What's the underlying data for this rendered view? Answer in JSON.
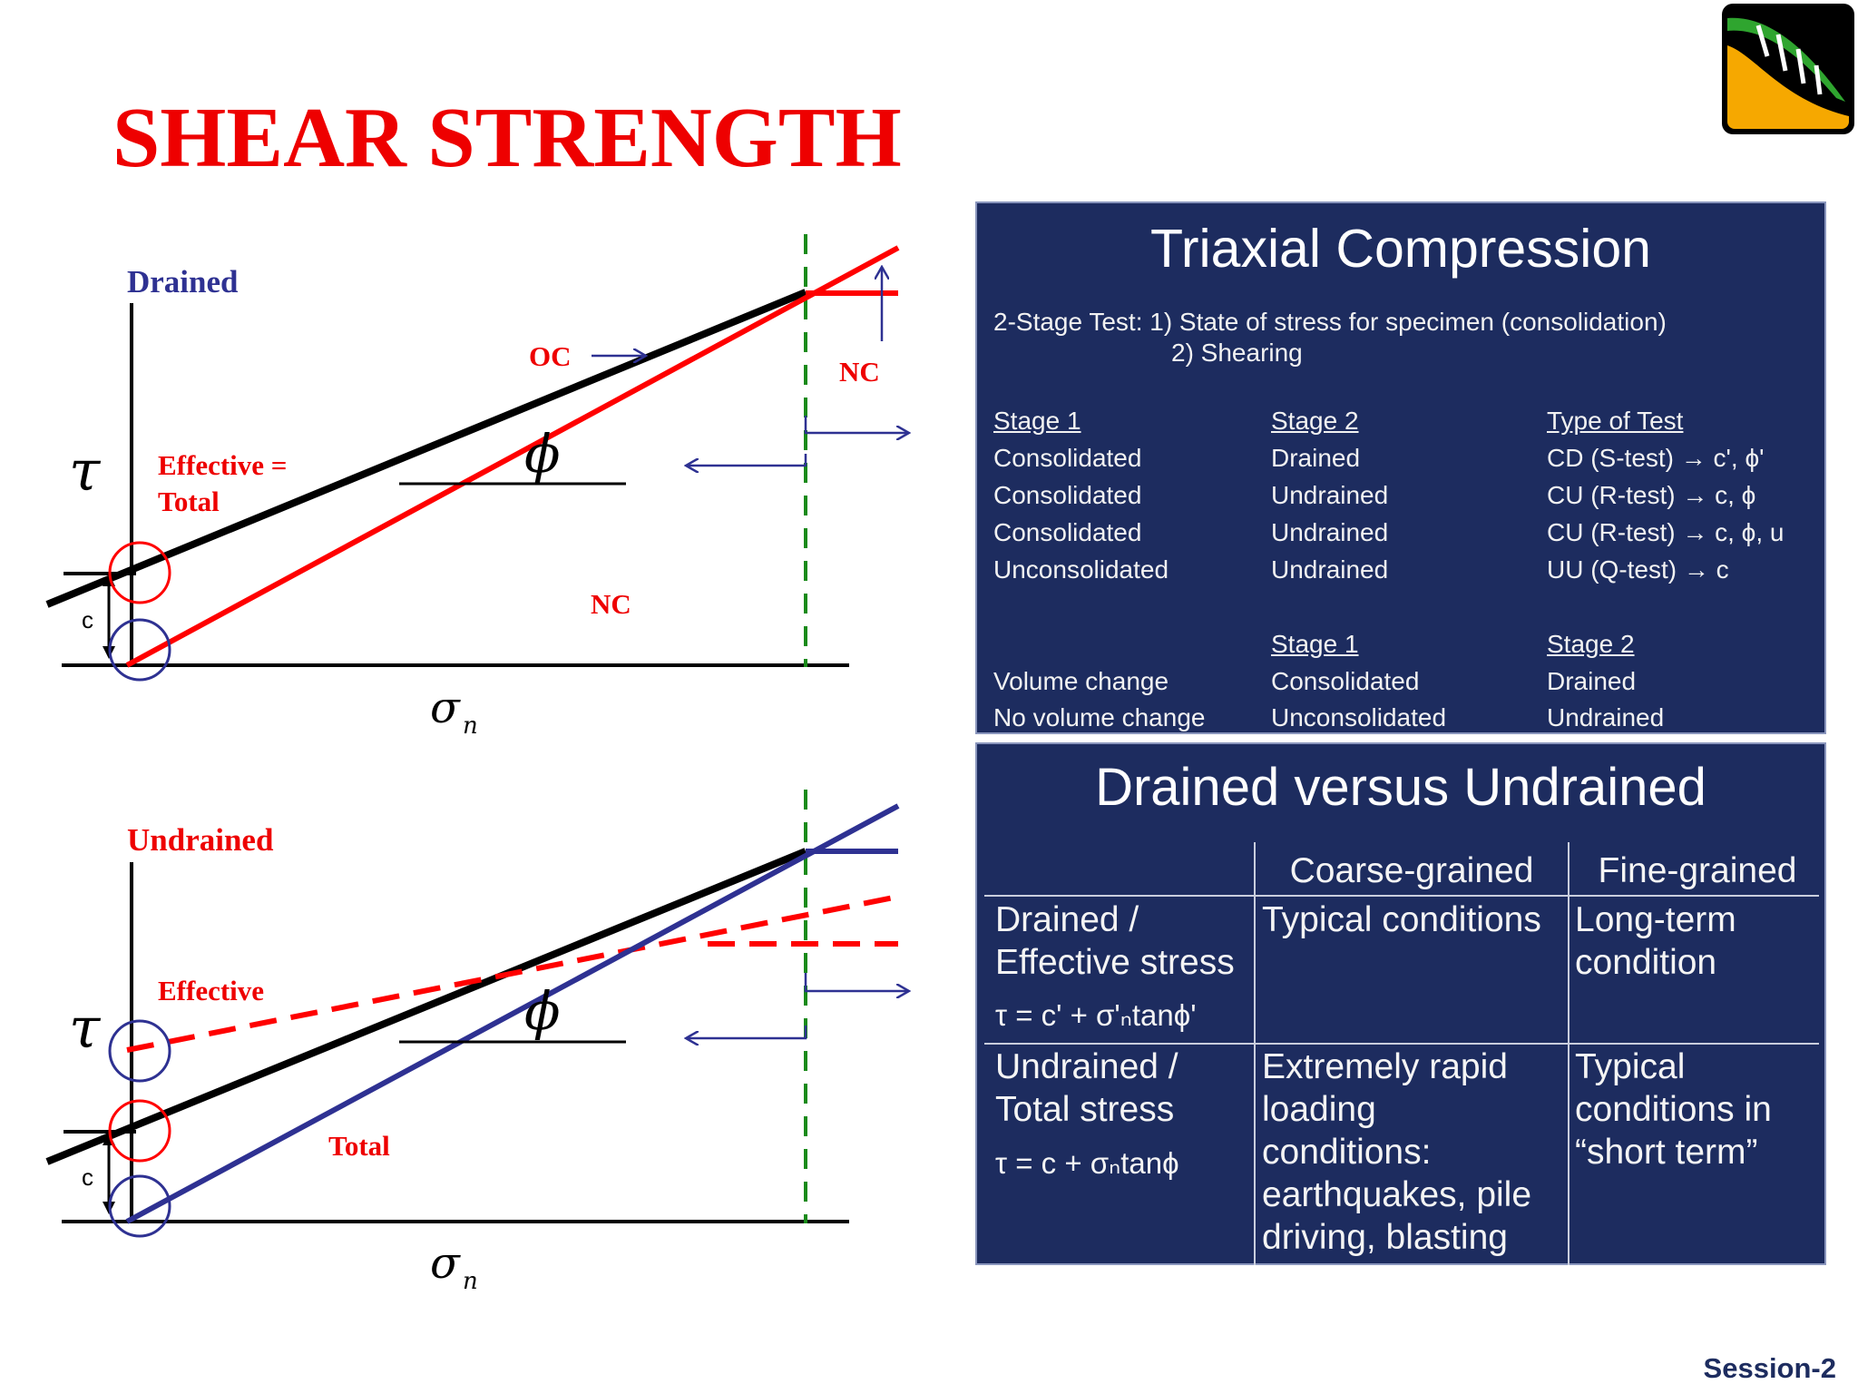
{
  "slide": {
    "title": "SHEAR STRENGTH",
    "footer": "Session-2"
  },
  "logo": {
    "icon": "slope-stability-logo-icon"
  },
  "diagram_drained": {
    "label": "Drained",
    "tau_symbol": "τ",
    "sigma_symbol": "σ",
    "sigma_sub": "n",
    "c_label": "c",
    "phi_symbol": "ϕ",
    "oc_label": "OC",
    "nc_label_top": "NC",
    "nc_label_mid": "NC",
    "effective_label_line1": "Effective =",
    "effective_label_line2": "Total"
  },
  "diagram_undrained": {
    "label": "Undrained",
    "tau_symbol": "τ",
    "sigma_symbol": "σ",
    "sigma_sub": "n",
    "c_label": "c",
    "phi_symbol": "ϕ",
    "effective_label": "Effective",
    "total_label": "Total"
  },
  "triaxial": {
    "title": "Triaxial Compression",
    "stage_test_line1": "2-Stage Test: 1) State of stress for specimen (consolidation)",
    "stage_test_line2": "2) Shearing",
    "headers": [
      "Stage 1",
      "Stage 2",
      "Type of Test"
    ],
    "rows": [
      [
        "Consolidated",
        "Drained",
        "CD (S-test) → c', ϕ'"
      ],
      [
        "Consolidated",
        "Undrained",
        "CU (R-test) → c, ϕ"
      ],
      [
        "Consolidated",
        "Undrained",
        "CU (R-test) → c, ϕ, u"
      ],
      [
        "Unconsolidated",
        "Undrained",
        "UU (Q-test) → c"
      ]
    ],
    "volume_headers": [
      "Stage 1",
      "Stage 2"
    ],
    "volume_rows": [
      [
        "Volume change",
        "Consolidated",
        "Drained"
      ],
      [
        "No volume change",
        "Unconsolidated",
        "Undrained"
      ]
    ]
  },
  "drained_undrained": {
    "title": "Drained versus Undrained",
    "col_headers": [
      "Coarse-grained",
      "Fine-grained"
    ],
    "row1": {
      "label_line1": "Drained /",
      "label_line2": "Effective stress",
      "formula": "τ = c' + σ'ₙtanϕ'",
      "coarse": "Typical conditions",
      "fine_line1": "Long-term",
      "fine_line2": "condition"
    },
    "row2": {
      "label_line1": "Undrained /",
      "label_line2": "Total stress",
      "formula": "τ = c + σₙtanϕ",
      "coarse_lines": [
        "Extremely rapid",
        "loading",
        "conditions:",
        "earthquakes, pile",
        "driving, blasting"
      ],
      "fine_lines": [
        "Typical",
        "conditions in",
        "“short term”"
      ]
    }
  },
  "colors": {
    "title_red": "#ee0000",
    "line_red": "#ff0000",
    "line_blue": "#2e3192",
    "line_black": "#000000",
    "dashed_green": "#1a8a1a",
    "panel_bg": "#1d2c5f"
  }
}
